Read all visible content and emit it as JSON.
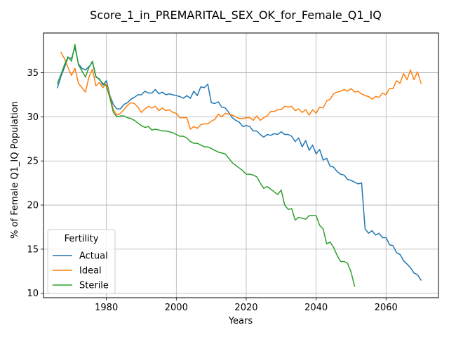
{
  "chart_data": {
    "type": "line",
    "title": "Score_1_in_PREMARITAL_SEX_OK_for_Female_Q1_IQ",
    "xlabel": "Years",
    "ylabel": "% of Female Q1_IQ Population",
    "xlim": [
      1962,
      2075
    ],
    "ylim": [
      9.5,
      39.5
    ],
    "xticks": [
      1980,
      2000,
      2020,
      2040,
      2060
    ],
    "yticks": [
      10,
      15,
      20,
      25,
      30,
      35
    ],
    "grid": true,
    "legend": {
      "title": "Fertility",
      "placement": "lower-left"
    },
    "series": [
      {
        "name": "Actual",
        "color": "#1f77b4",
        "points": [
          [
            1966,
            33.3
          ],
          [
            1967,
            34.6
          ],
          [
            1968,
            35.6
          ],
          [
            1969,
            36.7
          ],
          [
            1970,
            36.6
          ],
          [
            1971,
            37.9
          ],
          [
            1972,
            36.0
          ],
          [
            1973,
            35.5
          ],
          [
            1974,
            35.3
          ],
          [
            1975,
            35.7
          ],
          [
            1976,
            36.2
          ],
          [
            1977,
            34.5
          ],
          [
            1978,
            34.3
          ],
          [
            1979,
            33.6
          ],
          [
            1980,
            34.1
          ],
          [
            1981,
            32.4
          ],
          [
            1982,
            31.4
          ],
          [
            1983,
            30.9
          ],
          [
            1984,
            30.9
          ],
          [
            1985,
            31.4
          ],
          [
            1986,
            31.6
          ],
          [
            1987,
            32.0
          ],
          [
            1988,
            32.2
          ],
          [
            1989,
            32.5
          ],
          [
            1990,
            32.5
          ],
          [
            1991,
            32.9
          ],
          [
            1992,
            32.7
          ],
          [
            1993,
            32.7
          ],
          [
            1994,
            33.1
          ],
          [
            1995,
            32.6
          ],
          [
            1996,
            32.8
          ],
          [
            1997,
            32.5
          ],
          [
            1998,
            32.6
          ],
          [
            1999,
            32.5
          ],
          [
            2000,
            32.4
          ],
          [
            2001,
            32.3
          ],
          [
            2002,
            32.1
          ],
          [
            2003,
            32.4
          ],
          [
            2004,
            32.1
          ],
          [
            2005,
            32.9
          ],
          [
            2006,
            32.4
          ],
          [
            2007,
            33.4
          ],
          [
            2008,
            33.3
          ],
          [
            2009,
            33.7
          ],
          [
            2010,
            31.6
          ],
          [
            2011,
            31.5
          ],
          [
            2012,
            31.7
          ],
          [
            2013,
            31.1
          ],
          [
            2014,
            31.0
          ],
          [
            2015,
            30.5
          ],
          [
            2016,
            29.9
          ],
          [
            2017,
            29.6
          ],
          [
            2018,
            29.4
          ],
          [
            2019,
            28.9
          ],
          [
            2020,
            29.0
          ],
          [
            2021,
            28.9
          ],
          [
            2022,
            28.4
          ],
          [
            2023,
            28.4
          ],
          [
            2024,
            28.0
          ],
          [
            2025,
            27.7
          ],
          [
            2026,
            28.0
          ],
          [
            2027,
            27.9
          ],
          [
            2028,
            28.1
          ],
          [
            2029,
            28.0
          ],
          [
            2030,
            28.3
          ],
          [
            2031,
            28.0
          ],
          [
            2032,
            28.0
          ],
          [
            2033,
            27.8
          ],
          [
            2034,
            27.2
          ],
          [
            2035,
            27.6
          ],
          [
            2036,
            26.6
          ],
          [
            2037,
            27.3
          ],
          [
            2038,
            26.2
          ],
          [
            2039,
            26.8
          ],
          [
            2040,
            25.8
          ],
          [
            2041,
            26.3
          ],
          [
            2042,
            25.1
          ],
          [
            2043,
            25.3
          ],
          [
            2044,
            24.4
          ],
          [
            2045,
            24.3
          ],
          [
            2046,
            23.8
          ],
          [
            2047,
            23.5
          ],
          [
            2048,
            23.4
          ],
          [
            2049,
            22.9
          ],
          [
            2050,
            22.8
          ],
          [
            2051,
            22.6
          ],
          [
            2052,
            22.4
          ],
          [
            2053,
            22.5
          ],
          [
            2054,
            17.3
          ],
          [
            2055,
            16.8
          ],
          [
            2056,
            17.1
          ],
          [
            2057,
            16.6
          ],
          [
            2058,
            16.8
          ],
          [
            2059,
            16.3
          ],
          [
            2060,
            16.3
          ],
          [
            2061,
            15.5
          ],
          [
            2062,
            15.4
          ],
          [
            2063,
            14.6
          ],
          [
            2064,
            14.4
          ],
          [
            2065,
            13.7
          ],
          [
            2066,
            13.3
          ],
          [
            2067,
            12.9
          ],
          [
            2068,
            12.3
          ],
          [
            2069,
            12.1
          ],
          [
            2070,
            11.5
          ]
        ]
      },
      {
        "name": "Ideal",
        "color": "#ff7f0e",
        "points": [
          [
            1967,
            37.3
          ],
          [
            1968,
            36.6
          ],
          [
            1969,
            35.6
          ],
          [
            1970,
            34.7
          ],
          [
            1971,
            35.5
          ],
          [
            1972,
            33.8
          ],
          [
            1973,
            33.3
          ],
          [
            1974,
            32.8
          ],
          [
            1975,
            34.5
          ],
          [
            1976,
            35.4
          ],
          [
            1977,
            33.5
          ],
          [
            1978,
            33.9
          ],
          [
            1979,
            33.3
          ],
          [
            1980,
            33.8
          ],
          [
            1981,
            32.3
          ],
          [
            1982,
            30.8
          ],
          [
            1983,
            30.2
          ],
          [
            1984,
            30.4
          ],
          [
            1985,
            30.8
          ],
          [
            1986,
            31.3
          ],
          [
            1987,
            31.6
          ],
          [
            1988,
            31.5
          ],
          [
            1989,
            31.1
          ],
          [
            1990,
            30.5
          ],
          [
            1991,
            30.9
          ],
          [
            1992,
            31.2
          ],
          [
            1993,
            31.0
          ],
          [
            1994,
            31.2
          ],
          [
            1995,
            30.7
          ],
          [
            1996,
            31.0
          ],
          [
            1997,
            30.7
          ],
          [
            1998,
            30.8
          ],
          [
            1999,
            30.5
          ],
          [
            2000,
            30.4
          ],
          [
            2001,
            29.9
          ],
          [
            2002,
            29.9
          ],
          [
            2003,
            29.9
          ],
          [
            2004,
            28.6
          ],
          [
            2005,
            28.9
          ],
          [
            2006,
            28.7
          ],
          [
            2007,
            29.1
          ],
          [
            2008,
            29.2
          ],
          [
            2009,
            29.2
          ],
          [
            2010,
            29.5
          ],
          [
            2011,
            29.7
          ],
          [
            2012,
            30.3
          ],
          [
            2013,
            30.0
          ],
          [
            2014,
            30.4
          ],
          [
            2015,
            30.3
          ],
          [
            2016,
            30.2
          ],
          [
            2017,
            30.0
          ],
          [
            2018,
            29.8
          ],
          [
            2019,
            29.8
          ],
          [
            2020,
            29.9
          ],
          [
            2021,
            29.9
          ],
          [
            2022,
            29.6
          ],
          [
            2023,
            30.1
          ],
          [
            2024,
            29.6
          ],
          [
            2025,
            29.9
          ],
          [
            2026,
            30.1
          ],
          [
            2027,
            30.6
          ],
          [
            2028,
            30.6
          ],
          [
            2029,
            30.8
          ],
          [
            2030,
            30.8
          ],
          [
            2031,
            31.2
          ],
          [
            2032,
            31.1
          ],
          [
            2033,
            31.2
          ],
          [
            2034,
            30.7
          ],
          [
            2035,
            30.9
          ],
          [
            2036,
            30.5
          ],
          [
            2037,
            30.8
          ],
          [
            2038,
            30.2
          ],
          [
            2039,
            30.8
          ],
          [
            2040,
            30.4
          ],
          [
            2041,
            31.1
          ],
          [
            2042,
            31.0
          ],
          [
            2043,
            31.8
          ],
          [
            2044,
            32.0
          ],
          [
            2045,
            32.6
          ],
          [
            2046,
            32.8
          ],
          [
            2047,
            32.9
          ],
          [
            2048,
            33.1
          ],
          [
            2049,
            32.9
          ],
          [
            2050,
            33.2
          ],
          [
            2051,
            32.8
          ],
          [
            2052,
            32.9
          ],
          [
            2053,
            32.6
          ],
          [
            2054,
            32.4
          ],
          [
            2055,
            32.3
          ],
          [
            2056,
            32.0
          ],
          [
            2057,
            32.3
          ],
          [
            2058,
            32.2
          ],
          [
            2059,
            32.7
          ],
          [
            2060,
            32.5
          ],
          [
            2061,
            33.2
          ],
          [
            2062,
            33.2
          ],
          [
            2063,
            34.1
          ],
          [
            2064,
            33.8
          ],
          [
            2065,
            34.9
          ],
          [
            2066,
            34.2
          ],
          [
            2067,
            35.3
          ],
          [
            2068,
            34.2
          ],
          [
            2069,
            35.1
          ],
          [
            2070,
            33.8
          ]
        ]
      },
      {
        "name": "Sterile",
        "color": "#2ca02c",
        "points": [
          [
            1966,
            33.8
          ],
          [
            1967,
            34.8
          ],
          [
            1968,
            35.9
          ],
          [
            1969,
            36.8
          ],
          [
            1970,
            36.3
          ],
          [
            1971,
            38.2
          ],
          [
            1972,
            35.9
          ],
          [
            1973,
            35.2
          ],
          [
            1974,
            34.5
          ],
          [
            1975,
            35.6
          ],
          [
            1976,
            36.3
          ],
          [
            1977,
            34.6
          ],
          [
            1978,
            34.2
          ],
          [
            1979,
            33.8
          ],
          [
            1980,
            33.5
          ],
          [
            1981,
            32.1
          ],
          [
            1982,
            30.5
          ],
          [
            1983,
            30.0
          ],
          [
            1984,
            30.1
          ],
          [
            1985,
            30.1
          ],
          [
            1986,
            29.9
          ],
          [
            1987,
            29.8
          ],
          [
            1988,
            29.6
          ],
          [
            1989,
            29.3
          ],
          [
            1990,
            29.0
          ],
          [
            1991,
            28.8
          ],
          [
            1992,
            28.9
          ],
          [
            1993,
            28.5
          ],
          [
            1994,
            28.6
          ],
          [
            1995,
            28.5
          ],
          [
            1996,
            28.4
          ],
          [
            1997,
            28.4
          ],
          [
            1998,
            28.3
          ],
          [
            1999,
            28.2
          ],
          [
            2000,
            28.0
          ],
          [
            2001,
            27.8
          ],
          [
            2002,
            27.8
          ],
          [
            2003,
            27.6
          ],
          [
            2004,
            27.2
          ],
          [
            2005,
            27.0
          ],
          [
            2006,
            27.0
          ],
          [
            2007,
            26.8
          ],
          [
            2008,
            26.6
          ],
          [
            2009,
            26.6
          ],
          [
            2010,
            26.4
          ],
          [
            2011,
            26.2
          ],
          [
            2012,
            26.0
          ],
          [
            2013,
            25.9
          ],
          [
            2014,
            25.8
          ],
          [
            2015,
            25.3
          ],
          [
            2016,
            24.8
          ],
          [
            2017,
            24.5
          ],
          [
            2018,
            24.2
          ],
          [
            2019,
            23.9
          ],
          [
            2020,
            23.5
          ],
          [
            2021,
            23.5
          ],
          [
            2022,
            23.4
          ],
          [
            2023,
            23.2
          ],
          [
            2024,
            22.5
          ],
          [
            2025,
            21.9
          ],
          [
            2026,
            22.1
          ],
          [
            2027,
            21.8
          ],
          [
            2028,
            21.5
          ],
          [
            2029,
            21.2
          ],
          [
            2030,
            21.7
          ],
          [
            2031,
            20.0
          ],
          [
            2032,
            19.5
          ],
          [
            2033,
            19.6
          ],
          [
            2034,
            18.3
          ],
          [
            2035,
            18.6
          ],
          [
            2036,
            18.5
          ],
          [
            2037,
            18.4
          ],
          [
            2038,
            18.8
          ],
          [
            2039,
            18.8
          ],
          [
            2040,
            18.8
          ],
          [
            2041,
            17.7
          ],
          [
            2042,
            17.3
          ],
          [
            2043,
            15.6
          ],
          [
            2044,
            15.8
          ],
          [
            2045,
            15.2
          ],
          [
            2046,
            14.3
          ],
          [
            2047,
            13.6
          ],
          [
            2048,
            13.6
          ],
          [
            2049,
            13.4
          ],
          [
            2050,
            12.4
          ],
          [
            2051,
            10.8
          ]
        ]
      }
    ]
  }
}
